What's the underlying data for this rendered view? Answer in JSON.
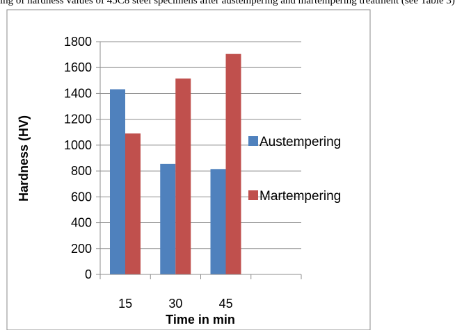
{
  "caption_fragment": "ing of hardness values of 45C8 steel specimens after austempering and martempering treatment (see Table 3)",
  "colors": {
    "Austempering": "#4f81bd",
    "Martempering": "#c0504d",
    "grid": "#8c8c8c",
    "axis": "#8c8c8c",
    "frame": "#888888"
  },
  "chart_data": {
    "type": "bar",
    "categories": [
      "15",
      "30",
      "45",
      ""
    ],
    "series": [
      {
        "name": "Austempering",
        "values": [
          1432,
          855,
          815,
          null
        ]
      },
      {
        "name": "Martempering",
        "values": [
          1090,
          1515,
          1705,
          null
        ]
      }
    ],
    "xlabel": "Time in min",
    "ylabel": "Hardness (HV)",
    "ylim": [
      0,
      1800
    ],
    "yticks": [
      0,
      200,
      400,
      600,
      800,
      1000,
      1200,
      1400,
      1600,
      1800
    ],
    "grid": "horizontal",
    "legend_position": "right"
  }
}
